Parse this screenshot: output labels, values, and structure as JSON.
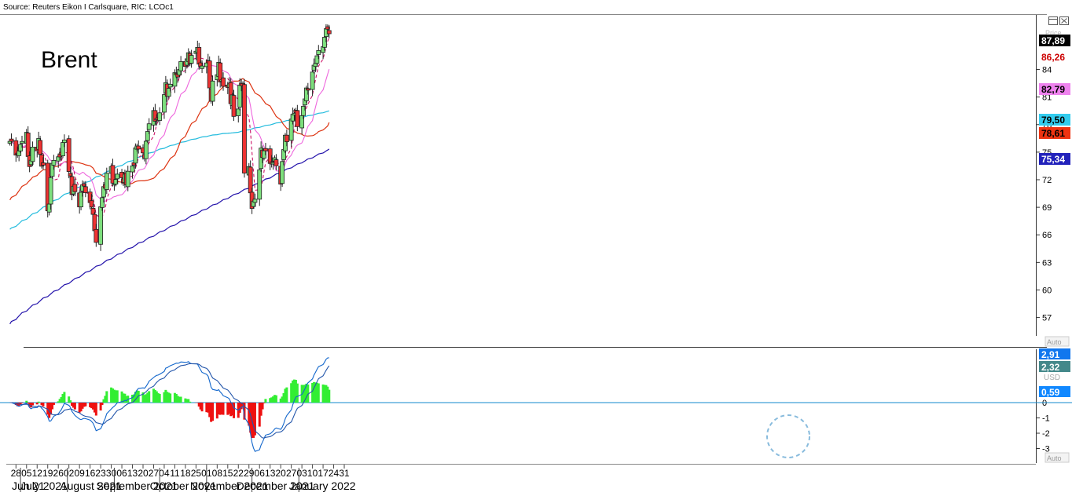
{
  "source": "Source: Reuters Eikon I Carlsquare, RIC: LCOc1",
  "title": "Brent",
  "icons": {
    "window": "window-icon",
    "close": "close-icon"
  },
  "price_label": "Price",
  "auto_label": "Auto",
  "usd_label": "USD",
  "price_axis": {
    "ticks": [
      57,
      60,
      63,
      66,
      69,
      72,
      75,
      78,
      81,
      84
    ],
    "tick_labels": [
      "57",
      "60",
      "63",
      "66",
      "69",
      "72",
      "75",
      "78",
      "81",
      "84"
    ],
    "range": [
      55,
      89
    ]
  },
  "price_badges": [
    {
      "text": "87,89",
      "value": 87.89,
      "bg": "#000000",
      "fg": "#ffffff"
    },
    {
      "text": "86,26",
      "value": 86.26,
      "bg": "#ffffff",
      "fg": "#cc0000"
    },
    {
      "text": "82,79",
      "value": 82.79,
      "bg": "#ee82ee",
      "fg": "#000000"
    },
    {
      "text": "79,50",
      "value": 79.5,
      "bg": "#33ccee",
      "fg": "#000000"
    },
    {
      "text": "78,61",
      "value": 78.61,
      "bg": "#ee3311",
      "fg": "#000000"
    },
    {
      "text": "75,34",
      "value": 75.34,
      "bg": "#2222bb",
      "fg": "#ffffff"
    }
  ],
  "macd_axis": {
    "ticks": [
      0,
      -1,
      -2,
      -3
    ],
    "tick_labels": [
      "0",
      "-1",
      "-2",
      "-3"
    ],
    "range": [
      -3.5,
      3.0
    ]
  },
  "macd_badges": [
    {
      "text": "2,91",
      "value": 2.91,
      "bg": "#1177ee",
      "fg": "#ffffff"
    },
    {
      "text": "2,32",
      "value": 2.32,
      "bg": "#44888a",
      "fg": "#ffffff"
    },
    {
      "text": "0,59",
      "value": 0.59,
      "bg": "#1188ff",
      "fg": "#ffffff"
    }
  ],
  "x_axis": {
    "day_ticks": [
      "28",
      "05",
      "12",
      "19",
      "26",
      "02",
      "09",
      "16",
      "23",
      "30",
      "06",
      "13",
      "20",
      "27",
      "04",
      "11",
      "18",
      "25",
      "01",
      "08",
      "15",
      "22",
      "29",
      "06",
      "13",
      "20",
      "27",
      "03",
      "10",
      "17",
      "24",
      "31"
    ],
    "month_labels": [
      "Jun 21",
      "July 2021",
      "August 2021",
      "September 2021",
      "October 2021",
      "November 2021",
      "December 2021",
      "January 2022"
    ]
  },
  "colors": {
    "up": "#7ddf7d",
    "down": "#ee3333",
    "ma_short": "#cc1166",
    "ma_pink": "#ee66dd",
    "ma_red": "#dd3311",
    "ma_cyan": "#22bbdd",
    "ma_blue": "#2211aa",
    "hist_pos": "#33ee33",
    "hist_neg": "#ee1111",
    "macd_line": "#1166cc",
    "signal_line": "#2255aa"
  },
  "chart_data": {
    "type": "candlestick",
    "title": "Brent",
    "ylabel": "",
    "xlabel": "",
    "ylim": [
      55,
      89
    ],
    "x_start": "2021-06-24",
    "x": [
      "2021-06-24",
      "2021-06-25",
      "2021-06-28",
      "2021-06-29",
      "2021-06-30",
      "2021-07-01",
      "2021-07-02",
      "2021-07-05",
      "2021-07-06",
      "2021-07-07",
      "2021-07-08",
      "2021-07-09",
      "2021-07-12",
      "2021-07-13",
      "2021-07-14",
      "2021-07-15",
      "2021-07-16",
      "2021-07-19",
      "2021-07-20",
      "2021-07-21",
      "2021-07-22",
      "2021-07-23",
      "2021-07-26",
      "2021-07-27",
      "2021-07-28",
      "2021-07-29",
      "2021-07-30",
      "2021-08-02",
      "2021-08-03",
      "2021-08-04",
      "2021-08-05",
      "2021-08-06",
      "2021-08-09",
      "2021-08-10",
      "2021-08-11",
      "2021-08-12",
      "2021-08-13",
      "2021-08-16",
      "2021-08-17",
      "2021-08-18",
      "2021-08-19",
      "2021-08-20",
      "2021-08-23",
      "2021-08-24",
      "2021-08-25",
      "2021-08-26",
      "2021-08-27",
      "2021-08-30",
      "2021-08-31",
      "2021-09-01",
      "2021-09-02",
      "2021-09-03",
      "2021-09-06",
      "2021-09-07",
      "2021-09-08",
      "2021-09-09",
      "2021-09-10",
      "2021-09-13",
      "2021-09-14",
      "2021-09-15",
      "2021-09-16",
      "2021-09-17",
      "2021-09-20",
      "2021-09-21",
      "2021-09-22",
      "2021-09-23",
      "2021-09-24",
      "2021-09-27",
      "2021-09-28",
      "2021-09-29",
      "2021-09-30",
      "2021-10-01",
      "2021-10-04",
      "2021-10-05",
      "2021-10-06",
      "2021-10-07",
      "2021-10-08",
      "2021-10-11",
      "2021-10-12",
      "2021-10-13",
      "2021-10-14",
      "2021-10-15",
      "2021-10-18",
      "2021-10-19",
      "2021-10-20",
      "2021-10-21",
      "2021-10-22",
      "2021-10-25",
      "2021-10-26",
      "2021-10-27",
      "2021-10-28",
      "2021-10-29",
      "2021-11-01",
      "2021-11-02",
      "2021-11-03",
      "2021-11-04",
      "2021-11-05",
      "2021-11-08",
      "2021-11-09",
      "2021-11-10",
      "2021-11-11",
      "2021-11-12",
      "2021-11-15",
      "2021-11-16",
      "2021-11-17",
      "2021-11-18",
      "2021-11-19",
      "2021-11-22",
      "2021-11-23",
      "2021-11-24",
      "2021-11-25",
      "2021-11-26",
      "2021-11-29",
      "2021-11-30",
      "2021-12-01",
      "2021-12-02",
      "2021-12-03",
      "2021-12-06",
      "2021-12-07",
      "2021-12-08",
      "2021-12-09",
      "2021-12-10",
      "2021-12-13",
      "2021-12-14",
      "2021-12-15",
      "2021-12-16",
      "2021-12-17",
      "2021-12-20",
      "2021-12-21",
      "2021-12-22",
      "2021-12-23",
      "2021-12-24",
      "2021-12-27",
      "2021-12-28",
      "2021-12-29",
      "2021-12-30",
      "2021-12-31",
      "2022-01-03",
      "2022-01-04",
      "2022-01-05",
      "2022-01-06",
      "2022-01-07",
      "2022-01-10",
      "2022-01-11",
      "2022-01-12",
      "2022-01-13",
      "2022-01-14",
      "2022-01-17",
      "2022-01-18",
      "2022-01-19",
      "2022-01-20",
      "2022-01-21"
    ],
    "close": [
      76.18,
      76.18,
      74.68,
      74.76,
      75.13,
      75.84,
      76.17,
      77.16,
      74.53,
      73.43,
      74.12,
      75.55,
      75.16,
      76.49,
      74.76,
      73.47,
      73.59,
      68.62,
      69.35,
      72.23,
      73.79,
      74.1,
      74.5,
      74.48,
      74.74,
      76.05,
      76.33,
      72.89,
      72.41,
      70.38,
      71.29,
      70.7,
      69.04,
      70.63,
      71.44,
      71.31,
      70.59,
      69.51,
      69.03,
      68.23,
      66.45,
      65.18,
      69.05,
      70.05,
      71.25,
      71.07,
      72.7,
      73.41,
      71.63,
      71.59,
      72.03,
      72.61,
      72.22,
      71.69,
      72.6,
      71.45,
      72.92,
      73.51,
      73.6,
      75.46,
      75.67,
      75.34,
      74.92,
      74.36,
      76.19,
      77.25,
      78.09,
      79.53,
      78.37,
      78.64,
      78.52,
      79.28,
      81.26,
      82.56,
      81.08,
      81.95,
      82.39,
      83.65,
      83.42,
      83.18,
      84.0,
      84.86,
      84.33,
      85.08,
      85.82,
      84.61,
      85.53,
      85.99,
      86.4,
      84.58,
      84.32,
      84.38,
      84.71,
      84.72,
      81.99,
      80.54,
      82.74,
      83.43,
      84.78,
      82.64,
      82.87,
      82.17,
      82.05,
      82.43,
      80.28,
      81.24,
      78.89,
      79.7,
      82.31,
      82.25,
      82.22,
      72.72,
      73.44,
      70.57,
      68.87,
      69.67,
      69.88,
      73.08,
      75.44,
      74.42,
      75.15,
      75.15,
      73.77,
      73.7,
      73.88,
      74.39,
      73.52,
      71.52,
      73.98,
      75.29,
      76.85,
      76.14,
      78.6,
      79.12,
      79.23,
      79.32,
      77.78,
      78.98,
      80.0,
      80.8,
      81.99,
      81.75,
      83.72,
      84.47,
      84.67,
      85.49,
      86.06,
      86.48,
      87.51,
      88.44,
      88.38,
      87.89
    ],
    "ma_short": [],
    "moving_averages": [
      "86,26",
      "82,79",
      "79,50",
      "78,61",
      "75,34"
    ],
    "macd": {
      "macd": 2.91,
      "signal": 2.32,
      "histogram": 0.59,
      "ylim": [
        -3.5,
        3.0
      ]
    }
  }
}
